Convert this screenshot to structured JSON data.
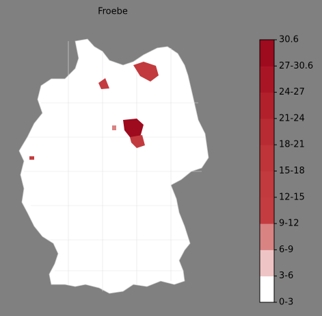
{
  "title": "Froebe",
  "colorbar": {
    "labels": [
      "0-3",
      "3-6",
      "6-9",
      "9-12",
      "12-15",
      "15-18",
      "18-21",
      "21-24",
      "24-27",
      "27-30.6",
      "30.6"
    ],
    "colors": [
      "#ffffff",
      "#efc4c4",
      "#d98383",
      "#c43c40",
      "#c23a3d",
      "#bf3438",
      "#b92b32",
      "#b2202b",
      "#aa1525",
      "#9e0a1e"
    ]
  }
}
